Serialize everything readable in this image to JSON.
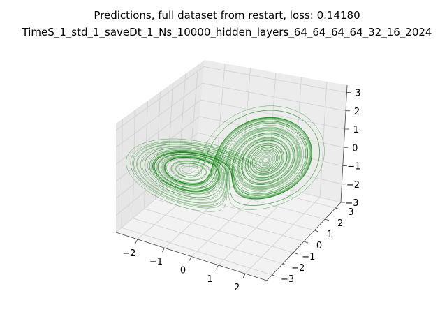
{
  "chart_data": {
    "type": "line",
    "projection": "3d",
    "title": "Predictions, full dataset from restart, loss: 0.14180",
    "subtitle": "TimeS_1_std_1_saveDt_1_Ns_10000_hidden_layers_64_64_64_64_32_16_2024",
    "xlabel": "",
    "ylabel": "",
    "zlabel": "",
    "xlim": [
      -2.8,
      2.8
    ],
    "ylim": [
      -3.5,
      3.5
    ],
    "zlim": [
      -3.0,
      3.4
    ],
    "x_ticks": [
      "−2",
      "−1",
      "0",
      "1",
      "2"
    ],
    "x_tick_values": [
      -2,
      -1,
      0,
      1,
      2
    ],
    "y_ticks": [
      "−3",
      "−2",
      "−1",
      "0",
      "1",
      "2",
      "3"
    ],
    "y_tick_values": [
      -3,
      -2,
      -1,
      0,
      1,
      2,
      3
    ],
    "z_ticks": [
      "−3",
      "−2",
      "−1",
      "0",
      "1",
      "2",
      "3"
    ],
    "z_tick_values": [
      -3,
      -2,
      -1,
      0,
      1,
      2,
      3
    ],
    "grid": true,
    "series": [
      {
        "color": "#008000",
        "points": 10000,
        "x_range": [
          -2.5,
          2.5
        ],
        "y_range": [
          -3,
          3
        ],
        "z_range": [
          -3,
          3
        ]
      }
    ]
  }
}
